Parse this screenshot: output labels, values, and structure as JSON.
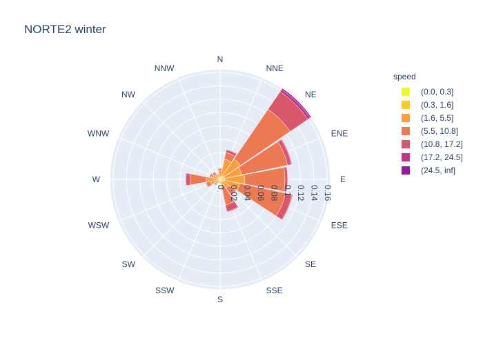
{
  "chart_data": {
    "type": "barpolar",
    "title": "NORTE2 winter",
    "directions": [
      "N",
      "NNE",
      "NE",
      "ENE",
      "E",
      "ESE",
      "SE",
      "SSE",
      "S",
      "SSW",
      "SW",
      "WSW",
      "W",
      "WNW",
      "NW",
      "NNW"
    ],
    "radial_ticks": [
      "0",
      "0.02",
      "0.04",
      "0.06",
      "0.08",
      "0.1",
      "0.12",
      "0.14",
      "0.16"
    ],
    "radial_range": [
      0,
      0.165
    ],
    "legend_title": "speed",
    "series": [
      {
        "name": "(0.0, 0.3]",
        "color": "#f0f921",
        "values": [
          0.001,
          0.001,
          0.001,
          0.001,
          0.001,
          0.001,
          0.001,
          0.001,
          0.001,
          0.001,
          0.001,
          0.001,
          0.001,
          0.001,
          0.001,
          0.001
        ]
      },
      {
        "name": "(0.3, 1.6]",
        "color": "#fdca26",
        "values": [
          0.002,
          0.004,
          0.006,
          0.006,
          0.006,
          0.005,
          0.003,
          0.002,
          0.001,
          0.001,
          0.002,
          0.002,
          0.003,
          0.002,
          0.002,
          0.001
        ]
      },
      {
        "name": "(1.6, 5.5]",
        "color": "#fb9f3a",
        "values": [
          0.01,
          0.026,
          0.03,
          0.026,
          0.03,
          0.024,
          0.012,
          0.008,
          0.003,
          0.003,
          0.005,
          0.012,
          0.017,
          0.008,
          0.006,
          0.004
        ]
      },
      {
        "name": "(5.5, 10.8]",
        "color": "#ed7953",
        "values": [
          0.003,
          0.01,
          0.09,
          0.07,
          0.06,
          0.07,
          0.011,
          0.028,
          0.001,
          0.001,
          0.002,
          0.006,
          0.024,
          0.003,
          0.002,
          0.002
        ]
      },
      {
        "name": "(10.8, 17.2]",
        "color": "#d8576b",
        "values": [
          0.001,
          0.004,
          0.032,
          0.006,
          0.004,
          0.01,
          0.002,
          0.01,
          0.0,
          0.0,
          0.001,
          0.001,
          0.006,
          0.002,
          0.002,
          0.001
        ]
      },
      {
        "name": "(17.2, 24.5]",
        "color": "#bd3786",
        "values": [
          0.0,
          0.001,
          0.004,
          0.001,
          0.0,
          0.001,
          0.0,
          0.001,
          0.0,
          0.0,
          0.0,
          0.0,
          0.001,
          0.0,
          0.001,
          0.0
        ]
      },
      {
        "name": "(24.5, inf]",
        "color": "#9c179e",
        "values": [
          0.0,
          0.0,
          0.002,
          0.0,
          0.0,
          0.0,
          0.0,
          0.0,
          0.0,
          0.0,
          0.0,
          0.0,
          0.0,
          0.0,
          0.0,
          0.0
        ]
      }
    ]
  },
  "colors": {
    "polar_bg": "#e5ecf6",
    "grid": "#ffffff",
    "text": "#2a3f5f"
  }
}
